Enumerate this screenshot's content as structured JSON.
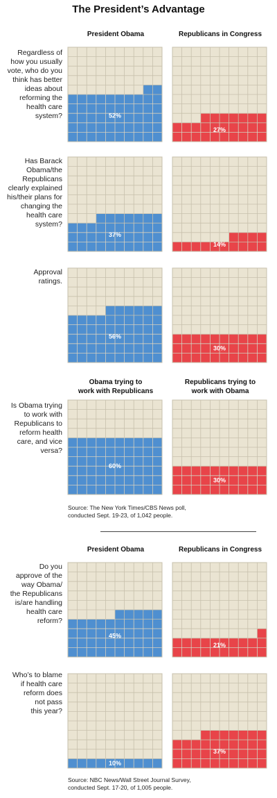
{
  "title": "The President’s Advantage",
  "colors": {
    "obama": "#4f8fd0",
    "republicans": "#e84449",
    "grid_bg": "#eae4d2",
    "grid_line": "#c7c0ac"
  },
  "section1": {
    "col_left": "President Obama",
    "col_right": "Republicans in Congress"
  },
  "section4_headers": {
    "col_left": "Obama trying to\nwork with Republicans",
    "col_right": "Republicans trying to\nwork with Obama"
  },
  "source1": "Source: The New York Times/CBS News poll,\nconducted Sept. 19-23, of 1,042 people.",
  "section2": {
    "col_left": "President Obama",
    "col_right": "Republicans in Congress"
  },
  "source2": "Source: NBC News/Wall Street Journal Survey,\nconducted Sept. 17-20, of 1,005 people.",
  "chart_data": [
    {
      "type": "waffle",
      "question": "Regardless of\nhow you usually\nvote, who do you\nthink has better\nideas about\nreforming the\nhealth care\nsystem?",
      "categories": [
        "President Obama",
        "Republicans in Congress"
      ],
      "values": [
        52,
        27
      ],
      "labels": [
        "52%",
        "27%"
      ]
    },
    {
      "type": "waffle",
      "question": "Has Barack\nObama/the\nRepublicans\nclearly explained\nhis/their plans for\nchanging the\nhealth care\nsystem?",
      "categories": [
        "President Obama",
        "Republicans in Congress"
      ],
      "values": [
        37,
        14
      ],
      "labels": [
        "37%",
        "14%"
      ]
    },
    {
      "type": "waffle",
      "question": "Approval\nratings.",
      "categories": [
        "President Obama",
        "Republicans in Congress"
      ],
      "values": [
        56,
        30
      ],
      "labels": [
        "56%",
        "30%"
      ]
    },
    {
      "type": "waffle",
      "question": "Is Obama trying\nto work with\nRepublicans to\nreform health\ncare, and vice\nversa?",
      "categories": [
        "Obama trying to work with Republicans",
        "Republicans trying to work with Obama"
      ],
      "values": [
        60,
        30
      ],
      "labels": [
        "60%",
        "30%"
      ]
    },
    {
      "type": "waffle",
      "question": "Do you\napprove of the\nway Obama/\nthe Republicans\nis/are handling\nhealth care\nreform?",
      "categories": [
        "President Obama",
        "Republicans in Congress"
      ],
      "values": [
        45,
        21
      ],
      "labels": [
        "45%",
        "21%"
      ]
    },
    {
      "type": "waffle",
      "question": "Who’s to blame\nif health care\nreform does\nnot pass\nthis year?",
      "categories": [
        "President Obama",
        "Republicans in Congress"
      ],
      "values": [
        10,
        37
      ],
      "labels": [
        "10%",
        "37%"
      ]
    }
  ]
}
